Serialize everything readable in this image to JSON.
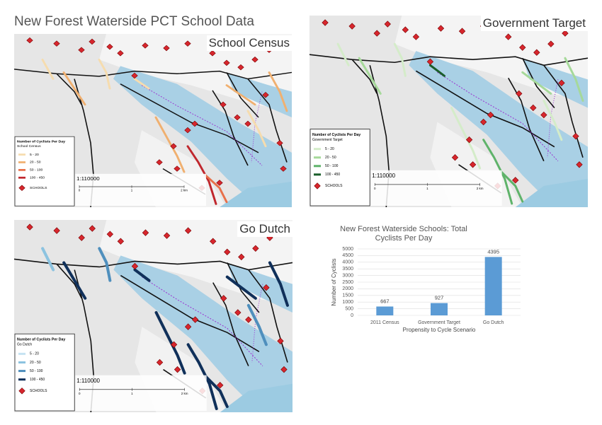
{
  "title": "New Forest Waterside PCT School Data",
  "maps": [
    {
      "label": "School Census",
      "scale": "1:110000",
      "scalebar": [
        "0",
        "1",
        "2 km"
      ],
      "legend": {
        "title": "Number of Cyclists Per Day",
        "subtitle": "School Census",
        "schools": "SCHOOLS",
        "items": [
          {
            "label": "5 - 20",
            "color": "#f6dcae"
          },
          {
            "label": "20 - 50",
            "color": "#f0b070"
          },
          {
            "label": "50 - 100",
            "color": "#e8704a"
          },
          {
            "label": "100 - 450",
            "color": "#c0272d"
          }
        ]
      }
    },
    {
      "label": "Government Target",
      "scale": "1:110000",
      "scalebar": [
        "0",
        "1",
        "2 km"
      ],
      "legend": {
        "title": "Number of Cyclists Per Day",
        "subtitle": "Government Target",
        "schools": "SCHOOLS",
        "items": [
          {
            "label": "5 - 20",
            "color": "#d4ecc9"
          },
          {
            "label": "20 - 50",
            "color": "#a6d99a"
          },
          {
            "label": "50 - 100",
            "color": "#5fb36a"
          },
          {
            "label": "100 - 450",
            "color": "#1a5e2a"
          }
        ]
      }
    },
    {
      "label": "Go Dutch",
      "scale": "1:110000",
      "scalebar": [
        "0",
        "1",
        "2 km"
      ],
      "legend": {
        "title": "Number of Cyclists Per Day",
        "subtitle": "Go Dutch",
        "schools": "SCHOOLS",
        "items": [
          {
            "label": "5 - 20",
            "color": "#c6e3f2"
          },
          {
            "label": "20 - 50",
            "color": "#8cc3e0"
          },
          {
            "label": "50 - 100",
            "color": "#4f8fbd"
          },
          {
            "label": "100 - 450",
            "color": "#10305a"
          }
        ]
      }
    }
  ],
  "chart_data": {
    "type": "bar",
    "title": "New Forest Waterside Schools: Total Cyclists Per Day",
    "categories": [
      "2011 Census",
      "Government Target",
      "Go Dutch"
    ],
    "values": [
      667,
      927,
      4395
    ],
    "color": "#5b9bd5",
    "xlabel": "Propensity to Cycle Scenario",
    "ylabel": "Number of Cyclists",
    "ylim": [
      0,
      5000
    ],
    "yticks": [
      0,
      500,
      1000,
      1500,
      2000,
      2500,
      3000,
      3500,
      4000,
      4500,
      5000
    ],
    "grid": true
  }
}
